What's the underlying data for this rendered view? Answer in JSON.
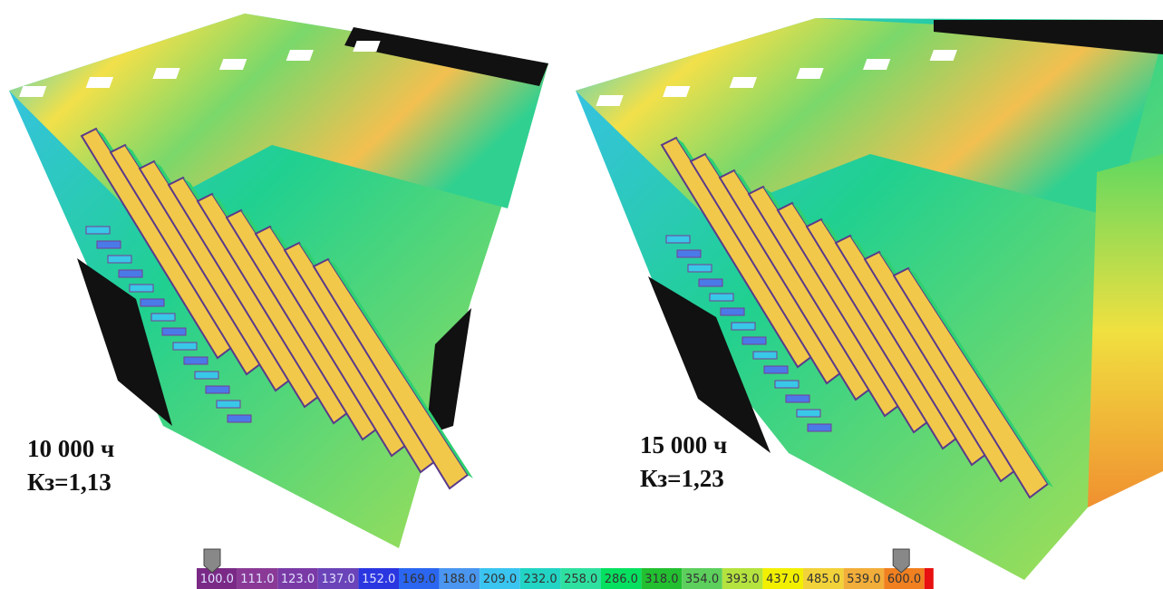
{
  "panels": [
    {
      "hours": "10 000 ч",
      "coefficient": "Кз=1,13"
    },
    {
      "hours": "15 000 ч",
      "coefficient": "Кз=1,23"
    }
  ],
  "scale": {
    "labels": [
      "100.0",
      "111.0",
      "123.0",
      "137.0",
      "152.0",
      "169.0",
      "188.0",
      "209.0",
      "232.0",
      "258.0",
      "286.0",
      "318.0",
      "354.0",
      "393.0",
      "437.0",
      "485.0",
      "539.0",
      "600.0"
    ],
    "colors": [
      "#7a2a86",
      "#8a3a96",
      "#7a3aa6",
      "#6a44b8",
      "#2a36e0",
      "#2a66f0",
      "#4a96f0",
      "#3ac4f0",
      "#22d4c4",
      "#2ee0a0",
      "#06e060",
      "#22c030",
      "#5ccf5c",
      "#b4e23e",
      "#f2f000",
      "#f2d23a",
      "#f2ae3a",
      "#f08020"
    ]
  }
}
